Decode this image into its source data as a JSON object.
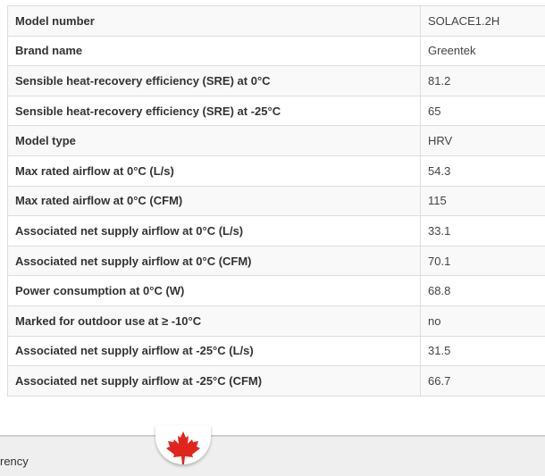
{
  "rows": [
    {
      "label": "Model number",
      "value": "SOLACE1.2H"
    },
    {
      "label": "Brand name",
      "value": "Greentek"
    },
    {
      "label": "Sensible heat-recovery efficiency (SRE) at 0°C",
      "value": "81.2"
    },
    {
      "label": "Sensible heat-recovery efficiency (SRE) at -25°C",
      "value": "65"
    },
    {
      "label": "Model type",
      "value": "HRV"
    },
    {
      "label": "Max rated airflow at 0°C (L/s)",
      "value": "54.3"
    },
    {
      "label": "Max rated airflow at 0°C (CFM)",
      "value": "115"
    },
    {
      "label": "Associated net supply airflow at 0°C (L/s)",
      "value": "33.1"
    },
    {
      "label": "Associated net supply airflow at 0°C (CFM)",
      "value": "70.1"
    },
    {
      "label": "Power consumption at 0°C (W)",
      "value": "68.8"
    },
    {
      "label": "Marked for outdoor use at ≥ -10°C",
      "value": "no"
    },
    {
      "label": "Associated net supply airflow at -25°C (L/s)",
      "value": "31.5"
    },
    {
      "label": "Associated net supply airflow at -25°C (CFM)",
      "value": "66.7"
    }
  ],
  "footer": {
    "text": "rency",
    "emblem_icon": "maple-leaf-icon",
    "emblem_color": "#e0261c"
  }
}
